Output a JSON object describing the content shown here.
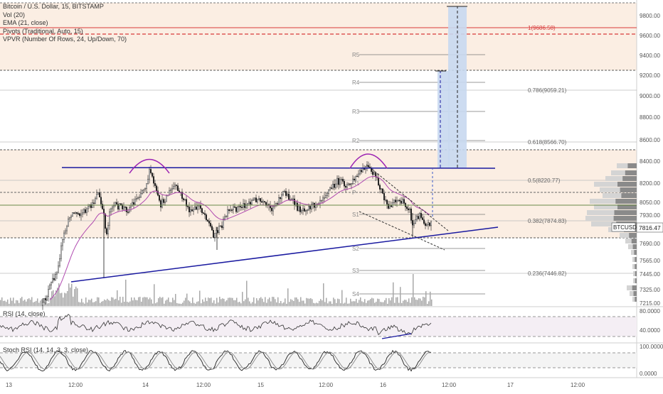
{
  "header": {
    "symbol_title": "Bitcoin / U.S. Dollar, 15, BITSTAMP",
    "indicators": [
      "Vol (20)",
      "EMA (21, close)",
      "Pivots (Traditional, Auto, 15)",
      "VPVR (Number Of Rows, 24, Up/Down, 70)"
    ]
  },
  "price_axis": {
    "ticks": [
      "9800.00",
      "9600.00",
      "9400.00",
      "9200.00",
      "9000.00",
      "8800.00",
      "8600.00",
      "8400.00",
      "8200.00",
      "8050.00",
      "7930.00",
      "7690.00",
      "7565.00",
      "7445.00",
      "7325.00",
      "7215.00"
    ],
    "current_price_label": "7816.47",
    "current_symbol_label": "BTCUSD"
  },
  "time_axis": {
    "labels": [
      "13",
      "12:00",
      "14",
      "12:00",
      "15",
      "12:00",
      "16",
      "12:00",
      "17",
      "12:00"
    ]
  },
  "pivots": {
    "labels": [
      "R5",
      "R4",
      "R3",
      "R2",
      "R1",
      "P",
      "S1",
      "S2",
      "S3",
      "S4"
    ]
  },
  "fib_levels": {
    "labels": [
      "1(9686.58)",
      "0.786(9059.21)",
      "0.618(8566.70)",
      "0.5(8220.77)",
      "0.382(7874.83)",
      "0.236(7446.82)"
    ]
  },
  "rsi": {
    "label": "RSI (14, close)",
    "axis_ticks": [
      "80.0000",
      "40.0000"
    ]
  },
  "stoch": {
    "label": "Stoch RSI (14, 14, 3, 3, close)",
    "axis_ticks": [
      "100.0000",
      "0.0000"
    ]
  },
  "colors": {
    "zone_fill": "#fbeee3",
    "candle": "#1a1a1a",
    "volume": "#a8a8a8",
    "ema": "#b04ab0",
    "trendline": "#1a1aa0",
    "projection": "#c8d8f0",
    "resistance": "#d83a3a",
    "green_level": "#6a8a4a"
  }
}
